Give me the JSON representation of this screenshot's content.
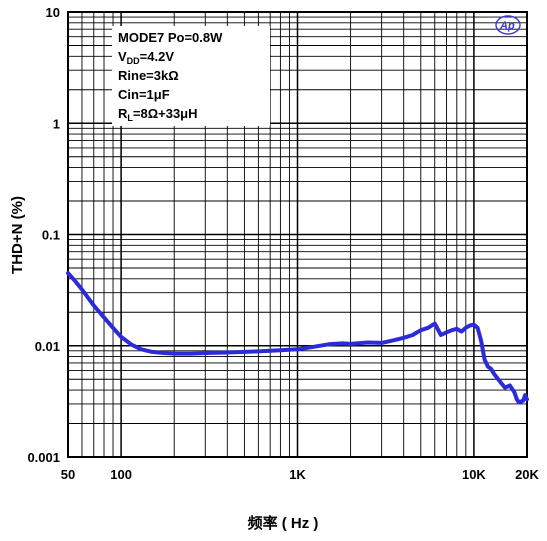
{
  "chart_data": {
    "type": "line",
    "xlabel": "频率 ( Hz )",
    "ylabel": "THD+N (%)",
    "x_scale": "log",
    "y_scale": "log",
    "xlim": [
      50,
      20000
    ],
    "ylim": [
      0.001,
      10
    ],
    "x_tick_labels": [
      "50",
      "100",
      "1K",
      "10K",
      "20K"
    ],
    "y_tick_labels": [
      "10",
      "1",
      "0.1",
      "0.01",
      "0.001"
    ],
    "grid": true,
    "annotation": {
      "line1": "MODE7  Po=0.8W",
      "line2_main": "V",
      "line2_sub": "DD",
      "line2_rest": "=4.2V",
      "line3": "Rine=3kΩ",
      "line4": "Cin=1μF",
      "line5_main": "R",
      "line5_sub": "L",
      "line5_rest": "=8Ω+33μH"
    },
    "logo": "Ap",
    "series": [
      {
        "color": "#2b2bd9",
        "x": [
          50,
          55,
          60,
          65,
          70,
          80,
          90,
          100,
          115,
          130,
          150,
          175,
          200,
          250,
          300,
          400,
          500,
          600,
          700,
          800,
          1000,
          1200,
          1500,
          1800,
          2000,
          2500,
          3000,
          3500,
          4000,
          4500,
          5000,
          5500,
          6000,
          6500,
          7000,
          7500,
          8000,
          8500,
          9000,
          9500,
          10000,
          10500,
          11000,
          11500,
          12000,
          12500,
          13000,
          14000,
          15000,
          16000,
          17000,
          17500,
          18000,
          19000,
          19500,
          20000
        ],
        "y": [
          0.045,
          0.038,
          0.032,
          0.027,
          0.023,
          0.018,
          0.0145,
          0.012,
          0.0102,
          0.0093,
          0.0088,
          0.0086,
          0.0085,
          0.0085,
          0.0086,
          0.0087,
          0.0088,
          0.0089,
          0.009,
          0.0091,
          0.0093,
          0.0097,
          0.0103,
          0.0105,
          0.0104,
          0.0107,
          0.0106,
          0.0112,
          0.0118,
          0.0125,
          0.0138,
          0.0145,
          0.0158,
          0.0125,
          0.0132,
          0.0138,
          0.0142,
          0.0134,
          0.0145,
          0.0152,
          0.0155,
          0.0145,
          0.011,
          0.0075,
          0.0065,
          0.0062,
          0.0056,
          0.0048,
          0.0042,
          0.0044,
          0.0038,
          0.0033,
          0.0031,
          0.0032,
          0.0036,
          0.0033
        ]
      }
    ]
  }
}
